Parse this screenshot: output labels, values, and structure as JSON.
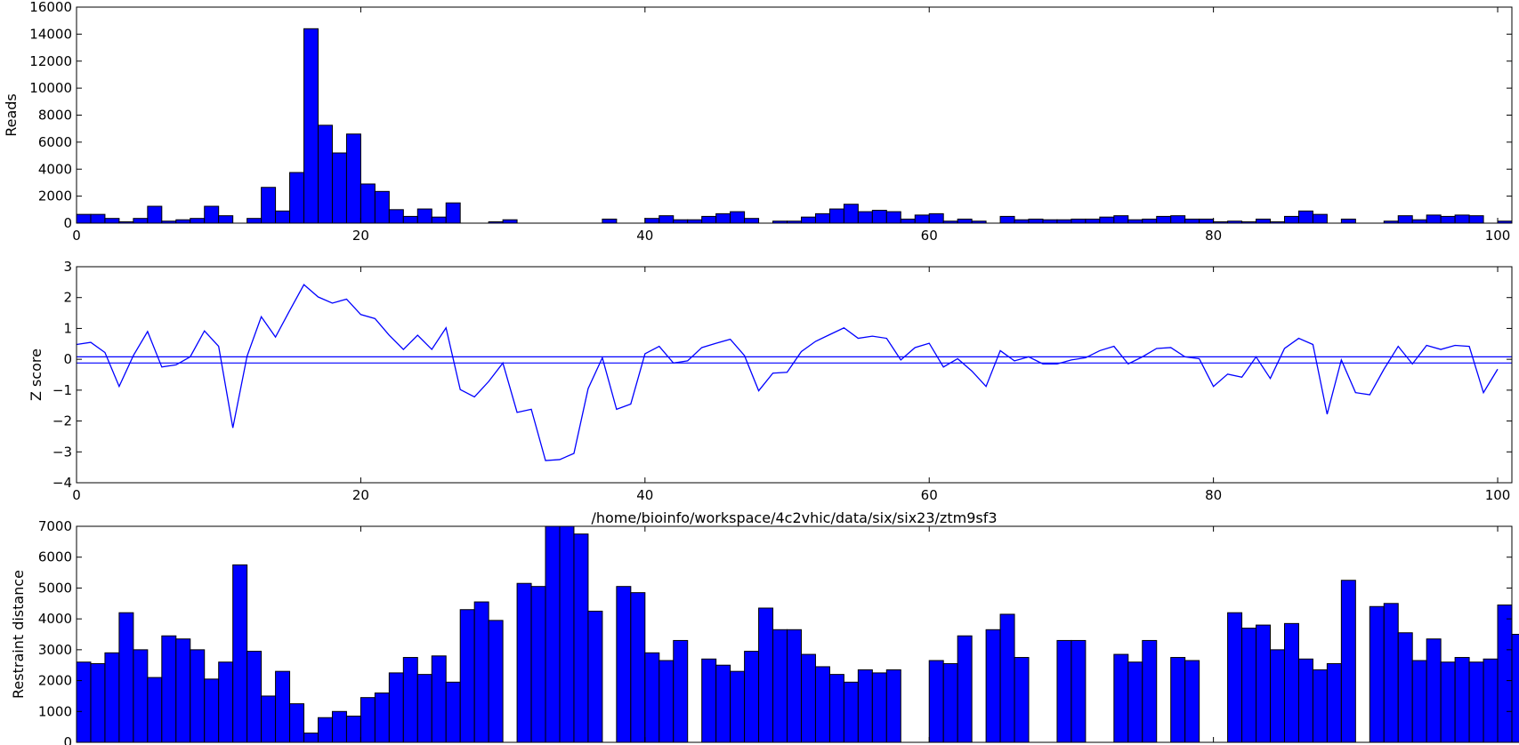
{
  "chart_data": [
    {
      "type": "bar",
      "ylabel": "Reads",
      "xlim": [
        0,
        101
      ],
      "ylim": [
        0,
        16000
      ],
      "xticks": [
        "0",
        "20",
        "40",
        "60",
        "80",
        "100"
      ],
      "yticks": [
        "0",
        "2000",
        "4000",
        "6000",
        "8000",
        "10000",
        "12000",
        "14000",
        "16000"
      ],
      "values": [
        650,
        650,
        350,
        100,
        350,
        1250,
        150,
        250,
        350,
        1250,
        550,
        0,
        350,
        2650,
        900,
        3750,
        14400,
        7250,
        5200,
        6600,
        2900,
        2350,
        1000,
        500,
        1050,
        450,
        1500,
        0,
        0,
        100,
        250,
        0,
        0,
        0,
        0,
        0,
        0,
        300,
        0,
        0,
        350,
        550,
        250,
        250,
        500,
        700,
        850,
        350,
        0,
        150,
        150,
        450,
        700,
        1050,
        1400,
        850,
        950,
        850,
        300,
        600,
        700,
        150,
        300,
        150,
        0,
        500,
        250,
        300,
        250,
        250,
        300,
        300,
        450,
        550,
        250,
        300,
        500,
        550,
        300,
        300,
        100,
        150,
        100,
        300,
        100,
        500,
        900,
        650,
        0,
        300,
        0,
        0,
        150,
        550,
        250,
        600,
        500,
        600,
        550,
        0,
        150
      ]
    },
    {
      "type": "line",
      "ylabel": "Z score",
      "xlim": [
        0,
        101
      ],
      "ylim": [
        -4,
        3
      ],
      "xticks": [
        "0",
        "20",
        "40",
        "60",
        "80",
        "100"
      ],
      "yticks": [
        "−4",
        "−3",
        "−2",
        "−1",
        "0",
        "1",
        "2",
        "3"
      ],
      "hlines": [
        0.08,
        -0.12
      ],
      "values": [
        0.48,
        0.55,
        0.22,
        -0.88,
        0.12,
        0.9,
        -0.25,
        -0.18,
        0.08,
        0.92,
        0.42,
        -2.22,
        0.1,
        1.38,
        0.72,
        1.58,
        2.42,
        2.02,
        1.82,
        1.95,
        1.45,
        1.32,
        0.78,
        0.32,
        0.78,
        0.32,
        1.02,
        -0.98,
        -1.22,
        -0.72,
        -0.12,
        -1.72,
        -1.62,
        -3.28,
        -3.25,
        -3.05,
        -0.95,
        0.05,
        -1.62,
        -1.45,
        0.18,
        0.42,
        -0.12,
        -0.05,
        0.38,
        0.52,
        0.65,
        0.12,
        -1.02,
        -0.45,
        -0.42,
        0.25,
        0.58,
        0.8,
        1.02,
        0.68,
        0.75,
        0.68,
        -0.02,
        0.38,
        0.52,
        -0.25,
        0.02,
        -0.38,
        -0.88,
        0.28,
        -0.05,
        0.08,
        -0.15,
        -0.15,
        -0.02,
        0.05,
        0.28,
        0.42,
        -0.15,
        0.08,
        0.35,
        0.38,
        0.08,
        0.02,
        -0.88,
        -0.48,
        -0.58,
        0.08,
        -0.62,
        0.35,
        0.68,
        0.48,
        -1.78,
        -0.02,
        -1.08,
        -1.15,
        -0.32,
        0.42,
        -0.15,
        0.45,
        0.32,
        0.45,
        0.42,
        -1.08,
        -0.32
      ]
    },
    {
      "type": "bar",
      "title": "/home/bioinfo/workspace/4c2vhic/data/six/six23/ztm9sf3",
      "ylabel": "Restraint distance",
      "xlim": [
        0,
        101
      ],
      "ylim": [
        0,
        7000
      ],
      "xticks": [
        "0",
        "20",
        "40",
        "60",
        "80",
        "100"
      ],
      "yticks": [
        "0",
        "1000",
        "2000",
        "3000",
        "4000",
        "5000",
        "6000",
        "7000"
      ],
      "values": [
        2600,
        2550,
        2900,
        4200,
        3000,
        2100,
        3450,
        3350,
        3000,
        2050,
        2600,
        5750,
        2950,
        1500,
        2300,
        1250,
        300,
        800,
        1000,
        850,
        1450,
        1600,
        2250,
        2750,
        2200,
        2800,
        1950,
        4300,
        4550,
        3950,
        0,
        5150,
        5050,
        7000,
        7000,
        6750,
        4250,
        0,
        5050,
        4850,
        2900,
        2650,
        3300,
        0,
        2700,
        2500,
        2300,
        2950,
        4350,
        3650,
        3650,
        2850,
        2450,
        2200,
        1950,
        2350,
        2250,
        2350,
        0,
        0,
        2650,
        2550,
        3450,
        0,
        3650,
        4150,
        2750,
        0,
        0,
        3300,
        3300,
        0,
        0,
        2850,
        2600,
        3300,
        0,
        2750,
        2650,
        0,
        0,
        4200,
        3700,
        3800,
        3000,
        3850,
        2700,
        2350,
        2550,
        5250,
        0,
        4400,
        4500,
        3550,
        2650,
        3350,
        2600,
        2750,
        2600,
        2700,
        4450,
        3500
      ]
    }
  ],
  "colors": {
    "bar_fill": "#0000ff",
    "bar_edge": "#000000",
    "line": "#0000ff",
    "axes": "#000000",
    "background": "#ffffff"
  }
}
